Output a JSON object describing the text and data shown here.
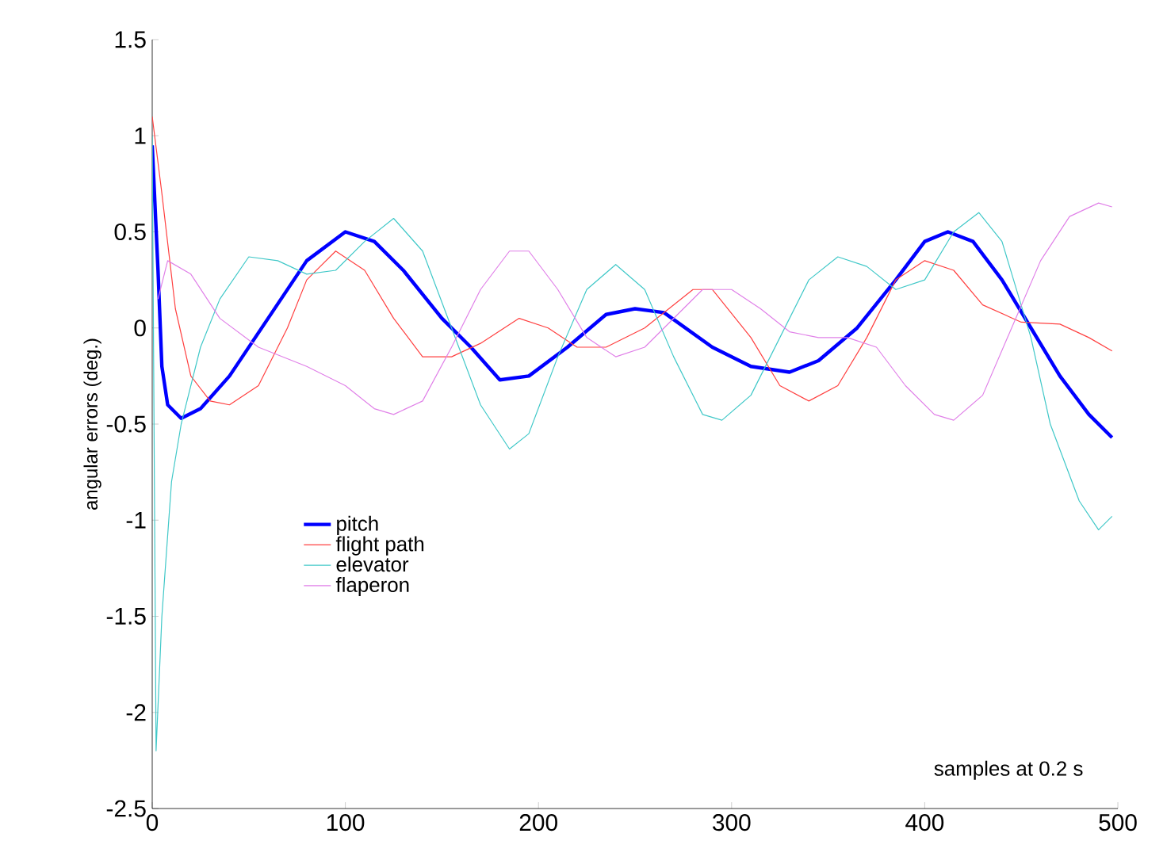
{
  "chart_data": {
    "type": "line",
    "xlabel": "samples at 0.2 s",
    "ylabel": "angular errors (deg.)",
    "xlim": [
      0,
      500
    ],
    "ylim": [
      -2.5,
      1.5
    ],
    "xticks": [
      0,
      100,
      200,
      300,
      400,
      500
    ],
    "yticks": [
      -2.5,
      -2,
      -1.5,
      -1,
      -0.5,
      0,
      0.5,
      1,
      1.5
    ],
    "grid": false,
    "legend": "left",
    "marker": "none",
    "series": [
      {
        "name": "pitch",
        "color": "#0000ff",
        "line_style": "solid",
        "x": [
          0,
          3,
          5,
          8,
          15,
          25,
          40,
          60,
          80,
          100,
          115,
          130,
          150,
          165,
          180,
          195,
          215,
          235,
          250,
          265,
          290,
          310,
          330,
          345,
          365,
          385,
          400,
          412,
          425,
          440,
          455,
          470,
          485,
          497
        ],
        "values": [
          0.95,
          0.3,
          -0.2,
          -0.4,
          -0.47,
          -0.42,
          -0.25,
          0.05,
          0.35,
          0.5,
          0.45,
          0.3,
          0.05,
          -0.1,
          -0.27,
          -0.25,
          -0.1,
          0.07,
          0.1,
          0.08,
          -0.1,
          -0.2,
          -0.23,
          -0.17,
          0.0,
          0.25,
          0.45,
          0.5,
          0.45,
          0.25,
          0.0,
          -0.25,
          -0.45,
          -0.57
        ]
      },
      {
        "name": "flight path",
        "color": "#ff4040",
        "line_style": "solid",
        "x": [
          0,
          5,
          12,
          20,
          30,
          40,
          55,
          70,
          80,
          95,
          110,
          125,
          140,
          155,
          170,
          190,
          205,
          220,
          235,
          255,
          280,
          290,
          310,
          325,
          340,
          355,
          370,
          385,
          400,
          415,
          430,
          450,
          470,
          485,
          497
        ],
        "values": [
          1.1,
          0.7,
          0.1,
          -0.25,
          -0.38,
          -0.4,
          -0.3,
          0.0,
          0.25,
          0.4,
          0.3,
          0.05,
          -0.15,
          -0.15,
          -0.08,
          0.05,
          0.0,
          -0.1,
          -0.1,
          0.0,
          0.2,
          0.2,
          -0.05,
          -0.3,
          -0.38,
          -0.3,
          -0.05,
          0.25,
          0.35,
          0.3,
          0.12,
          0.03,
          0.02,
          -0.05,
          -0.12
        ]
      },
      {
        "name": "elevator",
        "color": "#40c8c8",
        "line_style": "solid",
        "x": [
          0,
          2,
          5,
          10,
          15,
          25,
          35,
          50,
          65,
          80,
          95,
          110,
          125,
          140,
          155,
          170,
          185,
          195,
          210,
          225,
          240,
          255,
          270,
          285,
          295,
          310,
          325,
          340,
          355,
          370,
          385,
          400,
          415,
          428,
          440,
          455,
          465,
          480,
          490,
          497
        ],
        "values": [
          1.0,
          -2.2,
          -1.5,
          -0.8,
          -0.5,
          -0.1,
          0.15,
          0.37,
          0.35,
          0.28,
          0.3,
          0.45,
          0.57,
          0.4,
          0.0,
          -0.4,
          -0.63,
          -0.55,
          -0.15,
          0.2,
          0.33,
          0.2,
          -0.15,
          -0.45,
          -0.48,
          -0.35,
          -0.05,
          0.25,
          0.37,
          0.32,
          0.2,
          0.25,
          0.5,
          0.6,
          0.45,
          -0.05,
          -0.5,
          -0.9,
          -1.05,
          -0.98
        ]
      },
      {
        "name": "flaperon",
        "color": "#e080e8",
        "line_style": "solid",
        "x": [
          3,
          8,
          20,
          35,
          55,
          80,
          100,
          115,
          125,
          140,
          155,
          170,
          185,
          195,
          210,
          225,
          240,
          255,
          270,
          285,
          300,
          315,
          330,
          345,
          360,
          375,
          390,
          405,
          415,
          430,
          445,
          460,
          475,
          490,
          497
        ],
        "values": [
          0.15,
          0.35,
          0.28,
          0.05,
          -0.1,
          -0.2,
          -0.3,
          -0.42,
          -0.45,
          -0.38,
          -0.1,
          0.2,
          0.4,
          0.4,
          0.2,
          -0.05,
          -0.15,
          -0.1,
          0.05,
          0.2,
          0.2,
          0.1,
          -0.02,
          -0.05,
          -0.05,
          -0.1,
          -0.3,
          -0.45,
          -0.48,
          -0.35,
          0.0,
          0.35,
          0.58,
          0.65,
          0.63
        ]
      }
    ]
  }
}
